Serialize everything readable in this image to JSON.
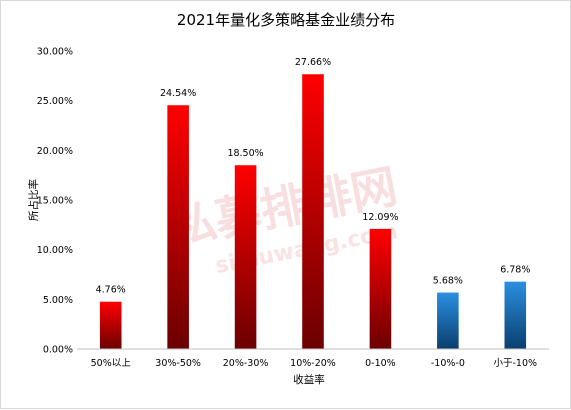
{
  "chart_data": {
    "type": "bar",
    "title": "2021年量化多策略基金业绩分布",
    "xlabel": "收益率",
    "ylabel": "所占比率",
    "ylim": [
      0,
      30
    ],
    "y_ticks": [
      "0.00%",
      "5.00%",
      "10.00%",
      "15.00%",
      "20.00%",
      "25.00%",
      "30.00%"
    ],
    "grid": false,
    "categories": [
      "50%以上",
      "30%-50%",
      "20%-30%",
      "10%-20%",
      "0-10%",
      "-10%-0",
      "小于-10%"
    ],
    "values": [
      4.76,
      24.54,
      18.5,
      27.66,
      12.09,
      5.68,
      6.78
    ],
    "data_labels": [
      "4.76%",
      "24.54%",
      "18.50%",
      "27.66%",
      "12.09%",
      "5.68%",
      "6.78%"
    ],
    "bar_colors": [
      "red",
      "red",
      "red",
      "red",
      "red",
      "blue",
      "blue"
    ],
    "colors": {
      "red_top": "#ff0000",
      "red_bottom": "#6b0000",
      "blue_top": "#2a8fe0",
      "blue_bottom": "#0a3f6e"
    }
  },
  "watermark": {
    "chinese": "私募排排网",
    "english": "simuwang.com"
  }
}
